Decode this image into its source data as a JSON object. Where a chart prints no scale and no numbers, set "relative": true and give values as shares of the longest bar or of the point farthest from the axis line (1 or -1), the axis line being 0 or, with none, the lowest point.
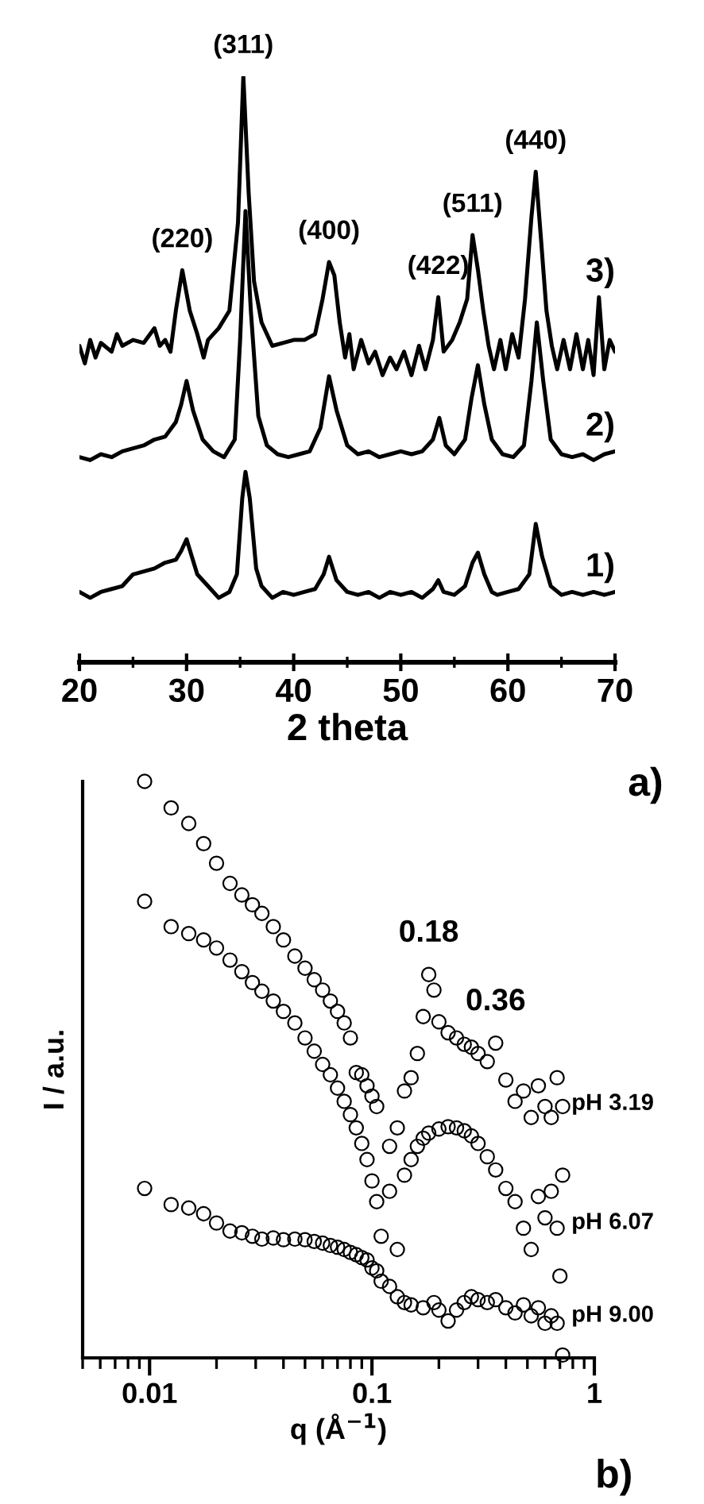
{
  "chart_data": [
    {
      "type": "line",
      "relative": true,
      "xlabel": "2 theta",
      "xlim": [
        20,
        70
      ],
      "xticks": [
        20,
        {
          "value": 25,
          "label": null
        },
        30,
        {
          "value": 35,
          "label": null
        },
        40,
        {
          "value": 45,
          "label": null
        },
        50,
        {
          "value": 55,
          "label": null
        },
        60,
        {
          "value": 65,
          "label": null
        },
        70
      ],
      "line_style": "solid",
      "annotations": [
        {
          "text": "(220)",
          "x": 29.6,
          "y": 0.669
        },
        {
          "text": "(311)",
          "x": 35.3,
          "y": 1.0
        },
        {
          "text": "(400)",
          "x": 43.3,
          "y": 0.683
        },
        {
          "text": "(422)",
          "x": 53.5,
          "y": 0.623
        },
        {
          "text": "(511)",
          "x": 56.7,
          "y": 0.729
        },
        {
          "text": "(440)",
          "x": 62.6,
          "y": 0.837
        },
        "a)"
      ],
      "series": [
        {
          "name": "1)",
          "color": "#000000",
          "x": [
            20,
            21,
            22,
            23,
            24,
            25,
            26,
            27,
            28,
            29,
            29.5,
            30,
            30.5,
            31,
            32,
            33,
            34,
            34.7,
            35.2,
            35.5,
            35.9,
            36.5,
            37,
            38,
            39,
            40,
            41,
            42,
            42.8,
            43.3,
            44,
            45,
            46,
            47,
            48,
            49,
            50,
            51,
            52,
            53,
            53.5,
            54,
            55,
            56,
            56.7,
            57.2,
            57.8,
            58.5,
            59,
            60,
            61,
            62,
            62.6,
            63.2,
            64,
            65,
            66,
            67,
            68,
            69,
            70
          ],
          "values": [
            0.12,
            0.11,
            0.12,
            0.125,
            0.13,
            0.15,
            0.155,
            0.16,
            0.17,
            0.175,
            0.19,
            0.21,
            0.18,
            0.15,
            0.13,
            0.11,
            0.12,
            0.15,
            0.28,
            0.325,
            0.28,
            0.16,
            0.13,
            0.11,
            0.12,
            0.115,
            0.12,
            0.125,
            0.15,
            0.18,
            0.14,
            0.12,
            0.115,
            0.12,
            0.11,
            0.12,
            0.115,
            0.12,
            0.11,
            0.125,
            0.14,
            0.12,
            0.115,
            0.13,
            0.17,
            0.187,
            0.15,
            0.12,
            0.115,
            0.12,
            0.125,
            0.15,
            0.236,
            0.18,
            0.13,
            0.115,
            0.12,
            0.115,
            0.12,
            0.115,
            0.12
          ]
        },
        {
          "name": "2)",
          "color": "#000000",
          "x": [
            20,
            21,
            22,
            23,
            24,
            25,
            26,
            27,
            28,
            29,
            29.5,
            30,
            30.6,
            31.5,
            32.5,
            33.5,
            34.5,
            35,
            35.5,
            36,
            36.7,
            37.5,
            38.5,
            39.5,
            40.5,
            41.5,
            42.5,
            43.3,
            44,
            45,
            46,
            47,
            48,
            49,
            50,
            51,
            52,
            53,
            53.6,
            54.2,
            55,
            56,
            56.6,
            57.2,
            57.8,
            58.5,
            59.5,
            60.5,
            61.5,
            62.2,
            62.7,
            63.3,
            64,
            65,
            66,
            67,
            68,
            69,
            70
          ],
          "values": [
            0.35,
            0.345,
            0.355,
            0.35,
            0.36,
            0.365,
            0.37,
            0.38,
            0.385,
            0.41,
            0.44,
            0.48,
            0.43,
            0.38,
            0.36,
            0.35,
            0.38,
            0.55,
            0.77,
            0.6,
            0.42,
            0.37,
            0.355,
            0.35,
            0.355,
            0.36,
            0.4,
            0.488,
            0.43,
            0.37,
            0.355,
            0.36,
            0.35,
            0.355,
            0.36,
            0.355,
            0.36,
            0.38,
            0.417,
            0.37,
            0.355,
            0.38,
            0.45,
            0.507,
            0.44,
            0.38,
            0.355,
            0.35,
            0.37,
            0.48,
            0.58,
            0.48,
            0.38,
            0.355,
            0.35,
            0.355,
            0.345,
            0.355,
            0.36
          ]
        },
        {
          "name": "3)",
          "color": "#000000",
          "x": [
            20,
            20.5,
            21,
            21.5,
            22,
            23,
            23.5,
            24,
            25,
            26,
            27,
            27.5,
            28,
            28.5,
            29,
            29.6,
            30.3,
            31,
            31.6,
            32,
            33,
            34,
            34.8,
            35.3,
            35.8,
            36.3,
            37,
            37.5,
            38,
            39,
            40,
            41,
            42,
            42.7,
            43.3,
            43.8,
            44.3,
            44.8,
            45.2,
            45.6,
            46.3,
            47,
            47.6,
            48.3,
            49,
            49.6,
            50.3,
            51,
            51.7,
            52.3,
            53,
            53.5,
            54,
            54.8,
            55.5,
            56.2,
            56.7,
            57.2,
            57.7,
            58.2,
            58.7,
            59.3,
            59.8,
            60.4,
            61,
            61.6,
            62.2,
            62.6,
            63.1,
            63.6,
            64.1,
            64.6,
            65.2,
            65.8,
            66.4,
            67,
            67.5,
            68,
            68.5,
            69,
            69.5,
            70
          ],
          "values": [
            0.54,
            0.51,
            0.55,
            0.52,
            0.545,
            0.53,
            0.56,
            0.54,
            0.55,
            0.545,
            0.57,
            0.54,
            0.55,
            0.53,
            0.6,
            0.669,
            0.6,
            0.56,
            0.52,
            0.55,
            0.57,
            0.6,
            0.75,
            1.0,
            0.8,
            0.65,
            0.58,
            0.56,
            0.54,
            0.545,
            0.55,
            0.55,
            0.56,
            0.62,
            0.683,
            0.66,
            0.58,
            0.52,
            0.56,
            0.5,
            0.55,
            0.51,
            0.53,
            0.49,
            0.52,
            0.5,
            0.53,
            0.49,
            0.54,
            0.5,
            0.55,
            0.623,
            0.53,
            0.55,
            0.58,
            0.62,
            0.729,
            0.67,
            0.6,
            0.54,
            0.5,
            0.55,
            0.5,
            0.56,
            0.52,
            0.62,
            0.76,
            0.837,
            0.72,
            0.6,
            0.54,
            0.5,
            0.55,
            0.5,
            0.56,
            0.5,
            0.55,
            0.49,
            0.623,
            0.5,
            0.55,
            0.53
          ]
        }
      ]
    },
    {
      "type": "scatter",
      "relative": true,
      "log": "x",
      "marker": "circle",
      "xlabel": "q (Å$^{−1}$)",
      "ylabel": "I / a.u.",
      "xlim": [
        0.005,
        1
      ],
      "xticks": [
        0.01,
        0.1,
        1
      ],
      "annotations": [
        {
          "text": "0.18",
          "x": 0.18,
          "y": 0.665
        },
        {
          "text": "0.36",
          "x": 0.36,
          "y": 0.546
        },
        "b)"
      ],
      "series": [
        {
          "name": "pH 3.19",
          "color": "#000000",
          "x": [
            0.0095,
            0.0125,
            0.015,
            0.0175,
            0.02,
            0.023,
            0.026,
            0.029,
            0.032,
            0.036,
            0.04,
            0.045,
            0.05,
            0.055,
            0.06,
            0.065,
            0.07,
            0.075,
            0.08,
            0.085,
            0.09,
            0.095,
            0.1,
            0.105,
            0.12,
            0.13,
            0.14,
            0.15,
            0.16,
            0.17,
            0.18,
            0.19,
            0.2,
            0.22,
            0.24,
            0.26,
            0.28,
            0.3,
            0.33,
            0.36,
            0.4,
            0.44,
            0.48,
            0.52,
            0.56,
            0.6,
            0.64,
            0.68,
            0.72
          ],
          "values": [
            1.0,
            0.954,
            0.927,
            0.892,
            0.858,
            0.823,
            0.803,
            0.786,
            0.771,
            0.748,
            0.725,
            0.697,
            0.676,
            0.656,
            0.638,
            0.619,
            0.601,
            0.581,
            0.555,
            0.495,
            0.491,
            0.472,
            0.454,
            0.436,
            0.367,
            0.399,
            0.463,
            0.486,
            0.528,
            0.592,
            0.665,
            0.638,
            0.583,
            0.564,
            0.555,
            0.544,
            0.539,
            0.528,
            0.514,
            0.546,
            0.482,
            0.445,
            0.463,
            0.417,
            0.472,
            0.436,
            0.417,
            0.486,
            0.436
          ]
        },
        {
          "name": "pH 6.07",
          "color": "#000000",
          "x": [
            0.0095,
            0.0125,
            0.015,
            0.0175,
            0.02,
            0.023,
            0.026,
            0.029,
            0.032,
            0.036,
            0.04,
            0.045,
            0.05,
            0.055,
            0.06,
            0.065,
            0.07,
            0.075,
            0.08,
            0.085,
            0.09,
            0.095,
            0.1,
            0.105,
            0.11,
            0.12,
            0.13,
            0.14,
            0.15,
            0.16,
            0.17,
            0.18,
            0.2,
            0.22,
            0.24,
            0.26,
            0.28,
            0.3,
            0.33,
            0.36,
            0.4,
            0.44,
            0.48,
            0.52,
            0.56,
            0.6,
            0.64,
            0.68,
            0.7,
            0.72
          ],
          "values": [
            0.792,
            0.748,
            0.736,
            0.725,
            0.711,
            0.69,
            0.67,
            0.651,
            0.636,
            0.619,
            0.601,
            0.581,
            0.555,
            0.532,
            0.509,
            0.491,
            0.468,
            0.445,
            0.422,
            0.399,
            0.372,
            0.344,
            0.307,
            0.271,
            0.211,
            0.289,
            0.188,
            0.317,
            0.344,
            0.367,
            0.381,
            0.39,
            0.397,
            0.401,
            0.399,
            0.394,
            0.385,
            0.372,
            0.349,
            0.326,
            0.294,
            0.271,
            0.225,
            0.188,
            0.28,
            0.243,
            0.289,
            0.225,
            0.142,
            0.317
          ]
        },
        {
          "name": "pH 9.00",
          "color": "#000000",
          "x": [
            0.0095,
            0.0125,
            0.015,
            0.0175,
            0.02,
            0.023,
            0.026,
            0.029,
            0.032,
            0.036,
            0.04,
            0.045,
            0.05,
            0.055,
            0.06,
            0.065,
            0.07,
            0.075,
            0.08,
            0.085,
            0.09,
            0.095,
            0.1,
            0.105,
            0.11,
            0.12,
            0.13,
            0.14,
            0.15,
            0.17,
            0.19,
            0.2,
            0.22,
            0.24,
            0.26,
            0.28,
            0.3,
            0.33,
            0.36,
            0.4,
            0.44,
            0.48,
            0.52,
            0.56,
            0.6,
            0.64,
            0.68,
            0.72
          ],
          "values": [
            0.294,
            0.266,
            0.26,
            0.25,
            0.234,
            0.22,
            0.217,
            0.211,
            0.206,
            0.208,
            0.205,
            0.206,
            0.205,
            0.202,
            0.199,
            0.195,
            0.192,
            0.188,
            0.183,
            0.179,
            0.174,
            0.17,
            0.156,
            0.151,
            0.133,
            0.124,
            0.106,
            0.096,
            0.092,
            0.087,
            0.096,
            0.083,
            0.064,
            0.083,
            0.096,
            0.106,
            0.101,
            0.096,
            0.101,
            0.087,
            0.078,
            0.092,
            0.073,
            0.087,
            0.06,
            0.073,
            0.06,
            0.005
          ]
        }
      ]
    }
  ]
}
